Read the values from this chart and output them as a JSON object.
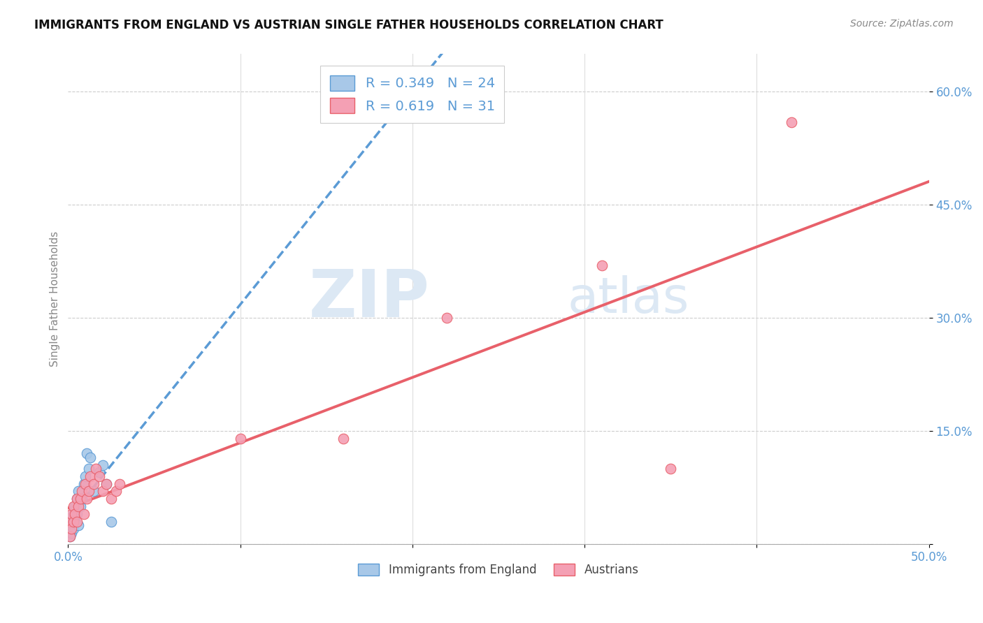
{
  "title": "IMMIGRANTS FROM ENGLAND VS AUSTRIAN SINGLE FATHER HOUSEHOLDS CORRELATION CHART",
  "source": "Source: ZipAtlas.com",
  "ylabel": "Single Father Households",
  "xlim": [
    0.0,
    0.5
  ],
  "ylim": [
    0.0,
    0.65
  ],
  "yticks": [
    0.0,
    0.15,
    0.3,
    0.45,
    0.6
  ],
  "ytick_labels": [
    "",
    "15.0%",
    "30.0%",
    "45.0%",
    "60.0%"
  ],
  "england_R": 0.349,
  "england_N": 24,
  "austria_R": 0.619,
  "austria_N": 31,
  "england_color": "#a8c8e8",
  "austria_color": "#f4a0b4",
  "england_line_color": "#5b9bd5",
  "austria_line_color": "#e8606a",
  "england_scatter_x": [
    0.001,
    0.001,
    0.002,
    0.002,
    0.003,
    0.003,
    0.004,
    0.004,
    0.005,
    0.005,
    0.006,
    0.006,
    0.007,
    0.008,
    0.009,
    0.01,
    0.011,
    0.012,
    0.013,
    0.015,
    0.018,
    0.02,
    0.022,
    0.025
  ],
  "england_scatter_y": [
    0.01,
    0.02,
    0.015,
    0.03,
    0.02,
    0.04,
    0.03,
    0.05,
    0.04,
    0.06,
    0.025,
    0.07,
    0.05,
    0.06,
    0.08,
    0.09,
    0.12,
    0.1,
    0.115,
    0.07,
    0.095,
    0.105,
    0.08,
    0.03
  ],
  "austria_scatter_x": [
    0.001,
    0.001,
    0.002,
    0.002,
    0.003,
    0.003,
    0.004,
    0.005,
    0.005,
    0.006,
    0.007,
    0.008,
    0.009,
    0.01,
    0.011,
    0.012,
    0.013,
    0.015,
    0.016,
    0.018,
    0.02,
    0.022,
    0.025,
    0.028,
    0.03,
    0.1,
    0.16,
    0.22,
    0.31,
    0.35,
    0.42
  ],
  "austria_scatter_y": [
    0.01,
    0.03,
    0.02,
    0.04,
    0.03,
    0.05,
    0.04,
    0.03,
    0.06,
    0.05,
    0.06,
    0.07,
    0.04,
    0.08,
    0.06,
    0.07,
    0.09,
    0.08,
    0.1,
    0.09,
    0.07,
    0.08,
    0.06,
    0.07,
    0.08,
    0.14,
    0.14,
    0.3,
    0.37,
    0.1,
    0.56
  ],
  "watermark_zip": "ZIP",
  "watermark_atlas": "atlas",
  "watermark_color": "#dce8f4",
  "legend_england_label": "Immigrants from England",
  "legend_austria_label": "Austrians"
}
